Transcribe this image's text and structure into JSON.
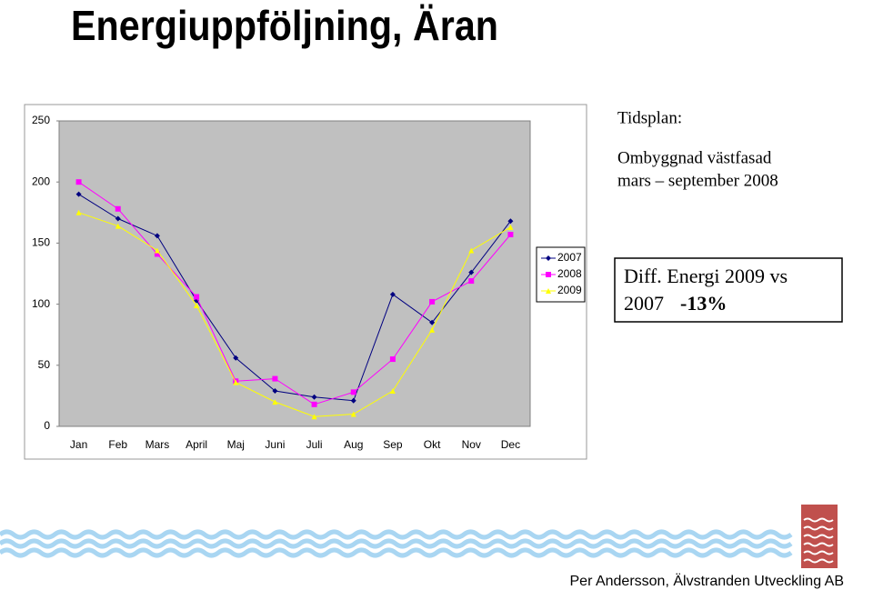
{
  "slide": {
    "title": "Energiuppföljning, Äran",
    "notes": [
      "Tidsplan:",
      "Ombyggnad västfasad",
      "mars – september 2008"
    ],
    "box": {
      "line1": "Diff. Energi 2009 vs",
      "line2": "2007",
      "highlight": "-13%"
    },
    "footer": "Per Andersson, Älvstranden Utveckling AB"
  },
  "chart_data": {
    "type": "line",
    "categories": [
      "Jan",
      "Feb",
      "Mars",
      "April",
      "Maj",
      "Juni",
      "Juli",
      "Aug",
      "Sep",
      "Okt",
      "Nov",
      "Dec"
    ],
    "series": [
      {
        "name": "2007",
        "color": "#000080",
        "marker": "diamond",
        "values": [
          190,
          170,
          156,
          103,
          56,
          29,
          24,
          21,
          108,
          85,
          126,
          168
        ]
      },
      {
        "name": "2008",
        "color": "#ff00ff",
        "marker": "square",
        "values": [
          200,
          178,
          141,
          106,
          37,
          39,
          18,
          28,
          55,
          102,
          119,
          157
        ]
      },
      {
        "name": "2009",
        "color": "#ffff00",
        "marker": "triangle",
        "values": [
          175,
          164,
          144,
          99,
          36,
          20,
          8,
          10,
          29,
          79,
          144,
          163
        ]
      }
    ],
    "ylim": [
      0,
      250
    ],
    "yticks": [
      0,
      50,
      100,
      150,
      200,
      250
    ],
    "grid": false,
    "legend": "right"
  }
}
